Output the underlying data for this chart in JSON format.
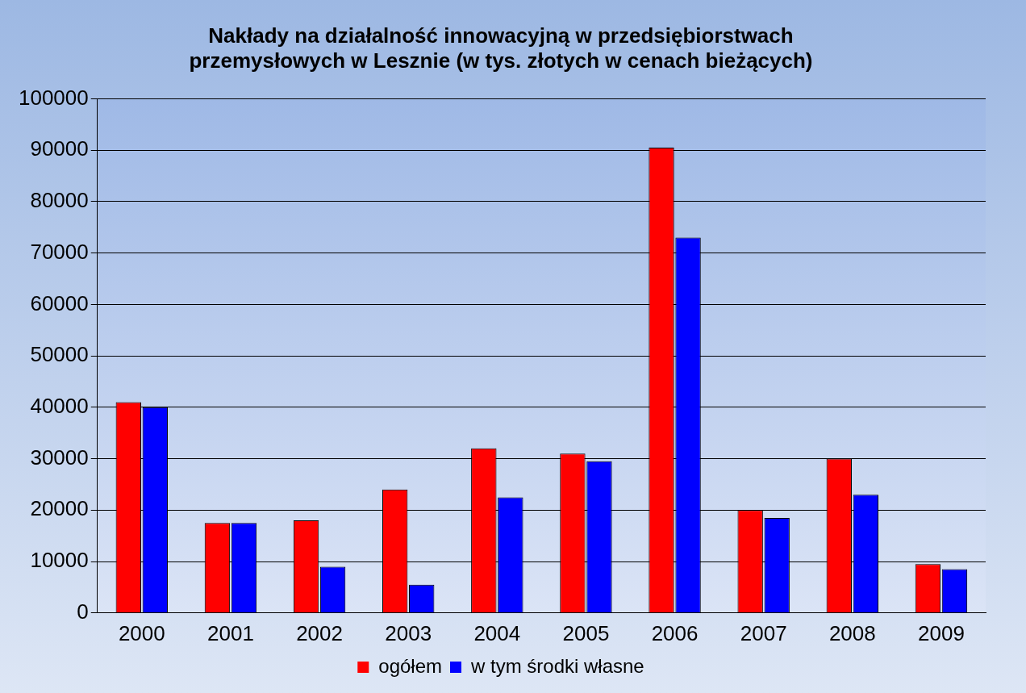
{
  "chart_data": {
    "type": "bar",
    "title": "Nakłady na działalność innowacyjną w przedsiębiorstwach przemysłowych w Lesznie (w tys. złotych w cenach bieżących)",
    "categories": [
      "2000",
      "2001",
      "2002",
      "2003",
      "2004",
      "2005",
      "2006",
      "2007",
      "2008",
      "2009"
    ],
    "series": [
      {
        "name": "ogółem",
        "color": "#ff0000",
        "values": [
          41000,
          17500,
          18000,
          24000,
          32000,
          31000,
          90500,
          20000,
          30000,
          9500
        ]
      },
      {
        "name": "w tym środki własne",
        "color": "#0000ff",
        "values": [
          40000,
          17500,
          9000,
          5500,
          22500,
          29500,
          73000,
          18500,
          23000,
          8500
        ]
      }
    ],
    "ylim": [
      0,
      100000
    ],
    "yticks": [
      0,
      10000,
      20000,
      30000,
      40000,
      50000,
      60000,
      70000,
      80000,
      90000,
      100000
    ],
    "grid": "y",
    "legend": "bottom"
  }
}
